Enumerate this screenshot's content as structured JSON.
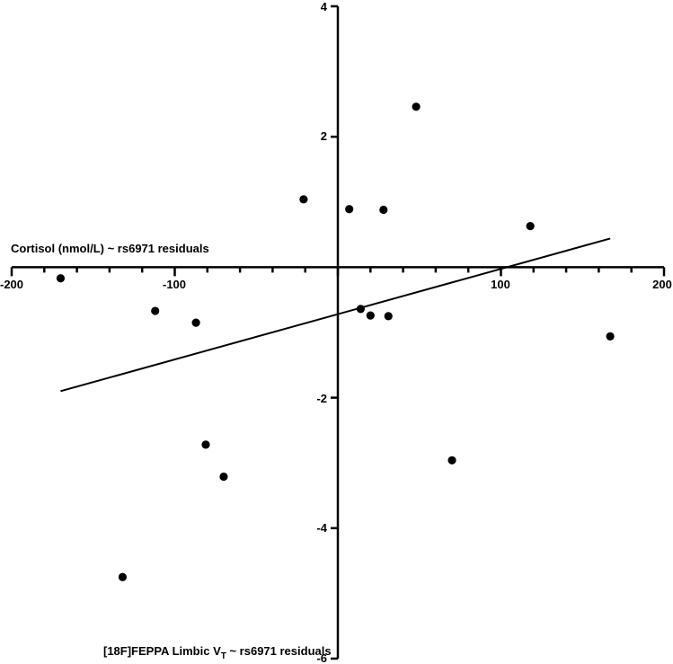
{
  "chart_data": {
    "type": "scatter",
    "title": "",
    "xlabel": "Cortisol (nmol/L) ~ rs6971 residuals",
    "ylabel": "[18F]FEPPA Limbic V_T ~ rs6971 residuals",
    "xlim": [
      -200,
      200
    ],
    "ylim": [
      -6,
      4
    ],
    "x_ticks": [
      -200,
      -100,
      100,
      200
    ],
    "x_tick_labels": [
      "-200",
      "-100",
      "100",
      "200"
    ],
    "x_minor_tick_step": 20,
    "y_ticks": [
      4,
      2,
      -2,
      -4,
      -6
    ],
    "y_tick_labels": [
      "4",
      "2",
      "-2",
      "-4",
      "-6"
    ],
    "grid": false,
    "legend": null,
    "series": [
      {
        "name": "residuals",
        "marker": "filled-circle",
        "color": "#000000",
        "points": [
          {
            "x": -170,
            "y": -0.17
          },
          {
            "x": -132,
            "y": -4.75
          },
          {
            "x": -112,
            "y": -0.67
          },
          {
            "x": -87,
            "y": -0.85
          },
          {
            "x": -81,
            "y": -2.72
          },
          {
            "x": -70,
            "y": -3.21
          },
          {
            "x": -21,
            "y": 1.04
          },
          {
            "x": 7,
            "y": 0.89
          },
          {
            "x": 14,
            "y": -0.64
          },
          {
            "x": 20,
            "y": -0.74
          },
          {
            "x": 28,
            "y": 0.88
          },
          {
            "x": 31,
            "y": -0.75
          },
          {
            "x": 48,
            "y": 2.46
          },
          {
            "x": 70,
            "y": -2.96
          },
          {
            "x": 118,
            "y": 0.63
          },
          {
            "x": 167,
            "y": -1.06
          }
        ]
      }
    ],
    "regression_line": {
      "x": [
        -170,
        167
      ],
      "y": [
        -1.9,
        0.44
      ],
      "color": "#000000"
    }
  },
  "labels": {
    "x_axis_title": "Cortisol (nmol/L) ~ rs6971 residuals",
    "y_axis_title_main": "[18F]FEPPA Limbic V",
    "y_axis_title_sub": "T",
    "y_axis_title_rest": " ~ rs6971 residuals",
    "x_tick_neg200": "-200",
    "x_tick_neg100": "-100",
    "x_tick_100": "100",
    "x_tick_200": "200",
    "y_tick_4": "4",
    "y_tick_2": "2",
    "y_tick_neg2": "-2",
    "y_tick_neg4": "-4",
    "y_tick_neg6": "-6"
  }
}
